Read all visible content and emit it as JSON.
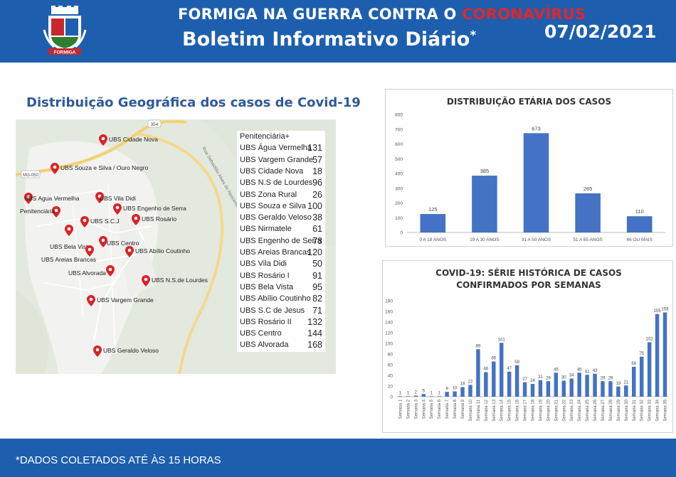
{
  "header": {
    "title_prefix": "FORMIGA NA GUERRA CONTRA O ",
    "title_highlight": "CORONAVÍRUS",
    "subtitle": "Boletim Informativo Diário",
    "subtitle_mark": "*",
    "date": "07/02/2021",
    "logo_text": "FORMIGA",
    "colors": {
      "bar": "#1d5fae",
      "highlight": "#e0262b",
      "bars": "#4472c4"
    }
  },
  "geo": {
    "title": "Distribuição Geográfica dos casos de Covid-19",
    "road_labels": [
      "354",
      "MG-050",
      "Rua Sebastião Alves do Nascimento"
    ],
    "pins": [
      {
        "label": "UBS Cidade Nova"
      },
      {
        "label": "UBS Souza e Silva / Ouro Negro"
      },
      {
        "label": "UBS Agua Vermelha"
      },
      {
        "label": "UBS Vila Didi"
      },
      {
        "label": "Penitenciária"
      },
      {
        "label": "UBS Engenho de Serra"
      },
      {
        "label": "UBS S.C.J"
      },
      {
        "label": "UBS Rosário"
      },
      {
        "label": "UBS Centro"
      },
      {
        "label": "UBS Bela Vista"
      },
      {
        "label": "UBS Areias Brancas"
      },
      {
        "label": "UBS Abílio Coutinho"
      },
      {
        "label": "UBS Alvorada"
      },
      {
        "label": "UBS N.S.de Lourdes"
      },
      {
        "label": "UBS Vargem Grande"
      },
      {
        "label": "UBS Geraldo Veloso"
      }
    ],
    "table": [
      {
        "name": "Penitenciária+",
        "value": ""
      },
      {
        "name": "UBS Água Vermelha",
        "value": "131"
      },
      {
        "name": "UBS Vargem Grande",
        "value": "57"
      },
      {
        "name": "UBS Cidade Nova",
        "value": "18"
      },
      {
        "name": "UBS N.S de Lourdes",
        "value": "96"
      },
      {
        "name": "UBS Zona Rural",
        "value": "26"
      },
      {
        "name": "UBS Souza e Silva",
        "value": "100"
      },
      {
        "name": "UBS Geraldo Veloso",
        "value": "38"
      },
      {
        "name": "UBS Nirmatele",
        "value": "61"
      },
      {
        "name": "UBS Engenho de Serra",
        "value": "78"
      },
      {
        "name": "UBS Areias Brancas",
        "value": "120"
      },
      {
        "name": "UBS Vila Didi",
        "value": "50"
      },
      {
        "name": "UBS Rosário I",
        "value": "91"
      },
      {
        "name": "UBS Bela Vista",
        "value": "95"
      },
      {
        "name": "UBS Abílio Coutinho",
        "value": "82"
      },
      {
        "name": "UBS S.C de Jesus",
        "value": "71"
      },
      {
        "name": "UBS Rosário II",
        "value": "132"
      },
      {
        "name": "UBS Centro",
        "value": "144"
      },
      {
        "name": "UBS Alvorada",
        "value": "168"
      }
    ]
  },
  "footer": {
    "note": "*DADOS COLETADOS ATÉ ÀS 15 HORAS"
  },
  "chart_data": [
    {
      "type": "bar",
      "title": "DISTRIBUIÇÃO ETÁRIA DOS CASOS",
      "categories": [
        "0 A 18 ANOS",
        "19 A 30 ANOS",
        "31 A 50 ANOS",
        "51 A 65 ANOS",
        "66 OU MAIS"
      ],
      "values": [
        125,
        385,
        673,
        265,
        110
      ],
      "ylim": [
        0,
        800
      ],
      "yticks": [
        0,
        100,
        200,
        300,
        400,
        500,
        600,
        700,
        800
      ],
      "grid": false
    },
    {
      "type": "bar",
      "title": "COVID-19: SÉRIE HISTÓRICA DE CASOS CONFIRMADOS POR SEMANAS",
      "categories": [
        "Semana 1",
        "Semana 2",
        "Semana 3",
        "Semana 4",
        "Semana 5",
        "Semana 6",
        "Semana 7",
        "Semana 8",
        "Semana 9",
        "Semana 10",
        "Semana 11",
        "Semana 12",
        "Semana 13",
        "Semana 14",
        "Semana 15",
        "Semana 16",
        "Semana 17",
        "Semana 18",
        "Semana 19",
        "Semana 20",
        "Semana 21",
        "Semana 22",
        "Semana 23",
        "Semana 24",
        "Semana 25",
        "Semana 26",
        "Semana 27",
        "Semana 28",
        "Semana 29",
        "Semana 30",
        "Semana 31",
        "Semana 32",
        "Semana 33",
        "Semana 34",
        "Semana 35"
      ],
      "values": [
        1,
        1,
        2,
        5,
        1,
        1,
        9,
        10,
        18,
        22,
        89,
        46,
        66,
        101,
        47,
        59,
        27,
        24,
        31,
        29,
        45,
        30,
        34,
        45,
        41,
        43,
        29,
        29,
        19,
        21,
        56,
        75,
        102,
        155,
        158
      ],
      "ylim": [
        0,
        180
      ],
      "yticks": [
        0,
        20,
        40,
        60,
        80,
        100,
        120,
        140,
        160,
        180
      ],
      "grid": false
    }
  ]
}
